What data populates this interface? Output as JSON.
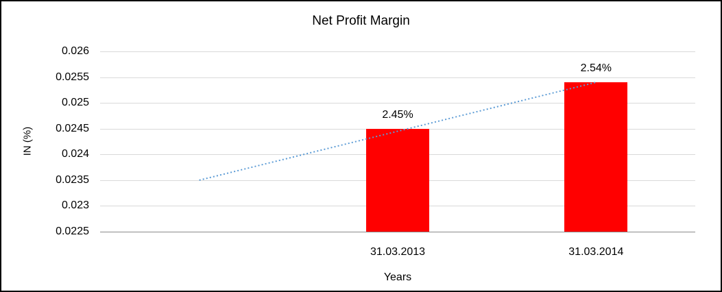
{
  "chart_data": {
    "type": "bar",
    "title": "Net Profit Margin",
    "xlabel": "Years",
    "ylabel": "IN (%)",
    "categories": [
      "31.03.2013",
      "31.03.2014"
    ],
    "values": [
      0.0245,
      0.0254
    ],
    "data_labels": [
      "2.45%",
      "2.54%"
    ],
    "ylim": [
      0.0225,
      0.026
    ],
    "yticks": [
      0.026,
      0.0255,
      0.025,
      0.0245,
      0.024,
      0.0235,
      0.023,
      0.0225
    ],
    "ytick_labels": [
      "0.026",
      "0.0255",
      "0.025",
      "0.0245",
      "0.024",
      "0.0235",
      "0.023",
      "0.0225"
    ],
    "grid": true,
    "legend": "none",
    "bar_color": "#ff0000",
    "slot_count": 3,
    "bar_slots": [
      1,
      2
    ],
    "trendline": {
      "style": "dotted",
      "color": "#5b9bd5",
      "points": [
        {
          "slot": 0,
          "value": 0.0235
        },
        {
          "slot": 2,
          "value": 0.0254
        }
      ]
    }
  }
}
